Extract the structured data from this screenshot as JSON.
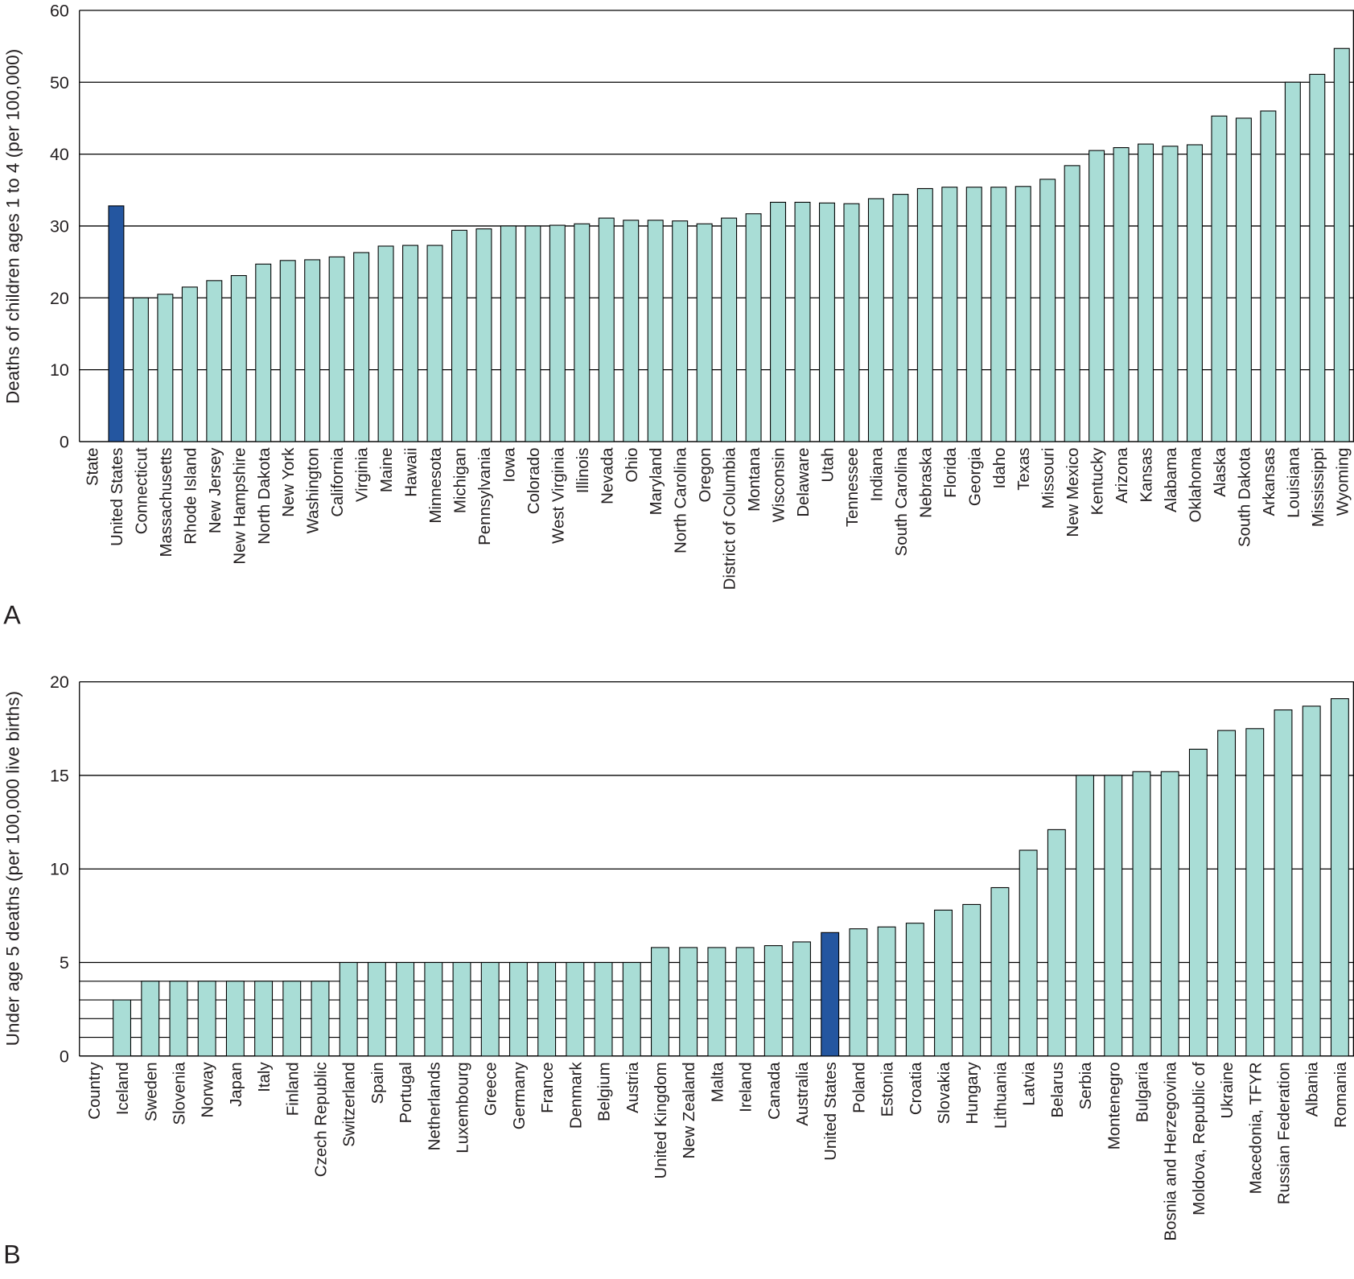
{
  "chart_data": [
    {
      "type": "bar",
      "panel_label": "A",
      "ylabel": "Deaths of children ages 1 to 4 (per 100,000)",
      "xlabel": "State",
      "categories": [
        "United States",
        "Connecticut",
        "Massachusetts",
        "Rhode Island",
        "New Jersey",
        "New Hampshire",
        "North Dakota",
        "New York",
        "Washington",
        "California",
        "Virginia",
        "Maine",
        "Hawaii",
        "Minnesota",
        "Michigan",
        "Pennsylvania",
        "Iowa",
        "Colorado",
        "West Virginia",
        "Illinois",
        "Nevada",
        "Ohio",
        "Maryland",
        "North Carolina",
        "Oregon",
        "District of Columbia",
        "Montana",
        "Wisconsin",
        "Delaware",
        "Utah",
        "Tennessee",
        "Indiana",
        "South Carolina",
        "Nebraska",
        "Florida",
        "Georgia",
        "Idaho",
        "Texas",
        "Missouri",
        "New Mexico",
        "Kentucky",
        "Arizona",
        "Kansas",
        "Alabama",
        "Oklahoma",
        "Alaska",
        "South Dakota",
        "Arkansas",
        "Louisiana",
        "Mississippi",
        "Wyoming"
      ],
      "values": [
        32.8,
        20,
        20.5,
        21.5,
        22.4,
        23.1,
        24.7,
        25.2,
        25.3,
        25.7,
        26.3,
        27.2,
        27.3,
        27.3,
        29.4,
        29.6,
        30,
        30,
        30.1,
        30.3,
        31.1,
        30.8,
        30.8,
        30.7,
        30.3,
        31.1,
        31.7,
        33.3,
        33.3,
        33.2,
        33.1,
        33.8,
        34.4,
        35.2,
        35.4,
        35.4,
        35.4,
        35.5,
        36.5,
        38.4,
        40.5,
        40.9,
        41.4,
        41.1,
        41.3,
        45.3,
        45,
        46,
        50,
        51.1,
        54.7
      ],
      "color": "#a9ddd6",
      "highlight": {
        "index": 0,
        "color": "#2456a0"
      },
      "ylim": [
        0,
        60
      ],
      "yticks": [
        0,
        10,
        20,
        30,
        40,
        50,
        60
      ],
      "grid": true
    },
    {
      "type": "bar",
      "panel_label": "B",
      "ylabel": "Under age 5 deaths (per 100,000 live births)",
      "xlabel": "Country",
      "categories": [
        "Iceland",
        "Sweden",
        "Slovenia",
        "Norway",
        "Japan",
        "Italy",
        "Finland",
        "Czech Republic",
        "Switzerland",
        "Spain",
        "Portugal",
        "Netherlands",
        "Luxembourg",
        "Greece",
        "Germany",
        "France",
        "Denmark",
        "Belgium",
        "Austria",
        "United Kingdom",
        "New Zealand",
        "Malta",
        "Ireland",
        "Canada",
        "Australia",
        "United States",
        "Poland",
        "Estonia",
        "Croatia",
        "Slovakia",
        "Hungary",
        "Lithuania",
        "Latvia",
        "Belarus",
        "Serbia",
        "Montenegro",
        "Bulgaria",
        "Bosnia and Herzegovina",
        "Moldova, Republic of",
        "Ukraine",
        "Macedonia, TFYR",
        "Russian Federation",
        "Albania",
        "Romania"
      ],
      "values": [
        3,
        4,
        4,
        4,
        4,
        4,
        4,
        4,
        5,
        5,
        5,
        5,
        5,
        5,
        5,
        5,
        5,
        5,
        5,
        5.8,
        5.8,
        5.8,
        5.8,
        5.9,
        6.1,
        6.6,
        6.8,
        6.9,
        7.1,
        7.8,
        8.1,
        9.0,
        11.0,
        12.1,
        15,
        15,
        15.2,
        15.2,
        16.4,
        17.4,
        17.5,
        18.5,
        18.7,
        19.1
      ],
      "color": "#a9ddd6",
      "highlight": {
        "index": 25,
        "color": "#2456a0"
      },
      "ylim": [
        0,
        20
      ],
      "yticks": [
        0,
        5,
        10,
        15,
        20
      ],
      "minor_gridlines": [
        1,
        2,
        3,
        4
      ],
      "grid": true
    }
  ]
}
